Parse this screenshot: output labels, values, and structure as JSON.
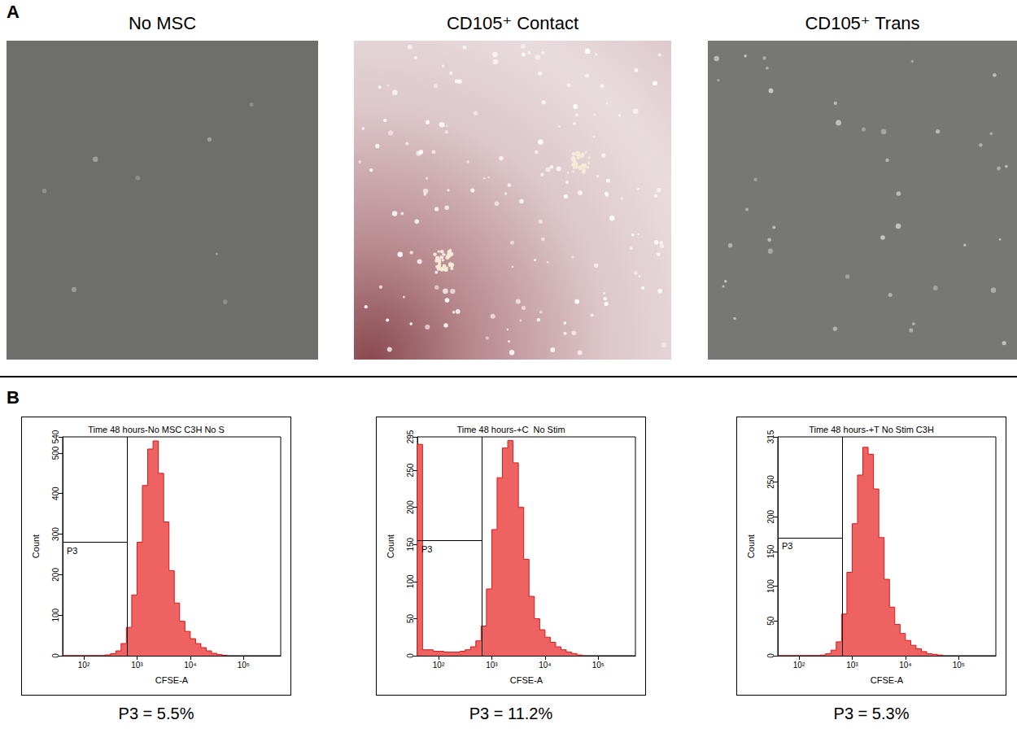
{
  "panel_a": {
    "letter": "A",
    "images": [
      {
        "title": "No MSC"
      },
      {
        "title": "CD105⁺ Contact"
      },
      {
        "title": "CD105⁺ Trans"
      }
    ]
  },
  "panel_b": {
    "letter": "B"
  },
  "chart_data": [
    {
      "type": "histogram",
      "title": "Time 48 hours-No MSC C3H No S",
      "x_label": "CFSE-A",
      "y_label": "Count",
      "log": "x",
      "color": "#ef6262",
      "bins": [
        40,
        50,
        63,
        79,
        100,
        126,
        158,
        200,
        251,
        316,
        398,
        501,
        631,
        794,
        1000,
        1259,
        1585,
        1995,
        2512,
        3162,
        3981,
        5012,
        6310,
        7943,
        10000,
        12589,
        15849,
        19953,
        25119,
        31623,
        39811,
        50119
      ],
      "values": [
        0,
        0,
        0,
        0,
        0,
        0,
        0,
        0,
        2,
        5,
        12,
        30,
        70,
        150,
        280,
        420,
        510,
        530,
        450,
        330,
        210,
        130,
        85,
        60,
        42,
        30,
        20,
        12,
        6,
        3,
        1
      ],
      "xlim": [
        40,
        500000
      ],
      "xticks": [
        {
          "value": 100,
          "label": "10²"
        },
        {
          "value": 1000,
          "label": "10³"
        },
        {
          "value": 10000,
          "label": "10⁴"
        },
        {
          "value": 100000,
          "label": "10⁵"
        }
      ],
      "ylim": [
        0,
        540
      ],
      "yticks": [
        0,
        100,
        200,
        300,
        400,
        500
      ],
      "gate": {
        "label": "P3",
        "x": 650,
        "y": 280
      },
      "caption": "P3 = 5.5%"
    },
    {
      "type": "histogram",
      "title": "Time 48 hours-+C  No Stim",
      "x_label": "CFSE-A",
      "y_label": "Count",
      "log": "x",
      "color": "#ef6262",
      "bins": [
        40,
        50,
        63,
        79,
        100,
        126,
        158,
        200,
        251,
        316,
        398,
        501,
        631,
        794,
        1000,
        1259,
        1585,
        1995,
        2512,
        3162,
        3981,
        5012,
        6310,
        7943,
        10000,
        12589,
        15849,
        19953,
        25119,
        31623,
        39811,
        50119
      ],
      "values": [
        285,
        8,
        8,
        6,
        6,
        5,
        5,
        5,
        6,
        8,
        12,
        20,
        40,
        90,
        170,
        240,
        280,
        290,
        260,
        200,
        130,
        80,
        50,
        35,
        25,
        18,
        12,
        8,
        5,
        3,
        1
      ],
      "xlim": [
        40,
        500000
      ],
      "xticks": [
        {
          "value": 100,
          "label": "10²"
        },
        {
          "value": 1000,
          "label": "10³"
        },
        {
          "value": 10000,
          "label": "10⁴"
        },
        {
          "value": 100000,
          "label": "10⁵"
        }
      ],
      "ylim": [
        0,
        295
      ],
      "yticks": [
        0,
        50,
        100,
        150,
        200,
        250
      ],
      "gate": {
        "label": "P3",
        "x": 650,
        "y": 155
      },
      "caption": "P3 = 11.2%"
    },
    {
      "type": "histogram",
      "title": "Time 48 hours-+T No Stim C3H",
      "x_label": "CFSE-A",
      "y_label": "Count",
      "log": "x",
      "color": "#ef6262",
      "bins": [
        40,
        50,
        63,
        79,
        100,
        126,
        158,
        200,
        251,
        316,
        398,
        501,
        631,
        794,
        1000,
        1259,
        1585,
        1995,
        2512,
        3162,
        3981,
        5012,
        6310,
        7943,
        10000,
        12589,
        15849,
        19953,
        25119,
        31623,
        39811,
        50119
      ],
      "values": [
        0,
        0,
        0,
        0,
        0,
        0,
        0,
        0,
        1,
        3,
        8,
        20,
        60,
        120,
        190,
        260,
        300,
        290,
        240,
        170,
        110,
        70,
        45,
        32,
        22,
        15,
        10,
        6,
        3,
        2,
        1
      ],
      "xlim": [
        40,
        500000
      ],
      "xticks": [
        {
          "value": 100,
          "label": "10²"
        },
        {
          "value": 1000,
          "label": "10³"
        },
        {
          "value": 10000,
          "label": "10⁴"
        },
        {
          "value": 100000,
          "label": "10⁵"
        }
      ],
      "ylim": [
        0,
        315
      ],
      "yticks": [
        0,
        50,
        100,
        150,
        200,
        250,
        300
      ],
      "gate": {
        "label": "P3",
        "x": 650,
        "y": 170
      },
      "caption": "P3 = 5.3%"
    }
  ]
}
